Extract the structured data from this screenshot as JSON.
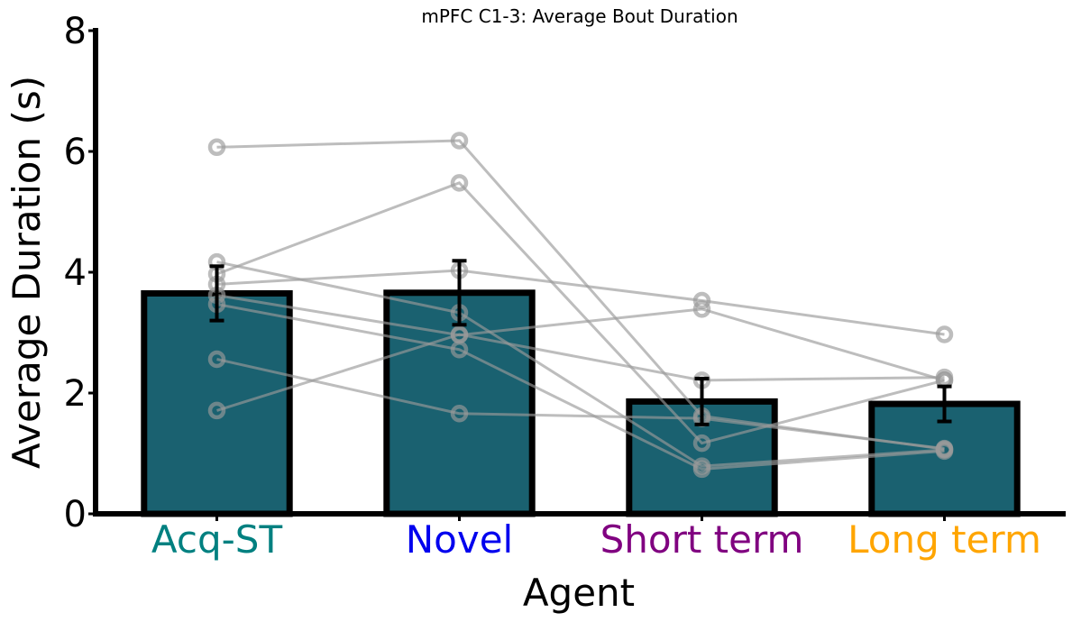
{
  "chart_data": {
    "type": "bar",
    "title": "mPFC C1-3: Average Bout Duration",
    "xlabel": "Agent",
    "ylabel": "Average Duration (s)",
    "ylim": [
      0,
      8
    ],
    "yticks": [
      "0",
      "2",
      "4",
      "6",
      "8"
    ],
    "categories": [
      "Acq-ST",
      "Novel",
      "Short term",
      "Long term"
    ],
    "category_colors": [
      "#008080",
      "#0000ee",
      "#800080",
      "#ffa500"
    ],
    "bar_color": "#1a6170",
    "bar_edge_color": "#000000",
    "point_color": "#999999",
    "values": [
      3.65,
      3.66,
      1.86,
      1.82
    ],
    "error": [
      0.45,
      0.53,
      0.38,
      0.29
    ],
    "subjects": [
      [
        6.07,
        6.18,
        1.62,
        1.07
      ],
      [
        3.97,
        5.48,
        1.17,
        2.21
      ],
      [
        3.8,
        4.03,
        3.53,
        2.97
      ],
      [
        4.17,
        3.33,
        0.79,
        1.06
      ],
      [
        3.62,
        2.96,
        3.39,
        2.21
      ],
      [
        3.47,
        2.72,
        0.74,
        1.04
      ],
      [
        2.56,
        1.66,
        1.58,
        1.08
      ],
      [
        1.71,
        2.97,
        2.21,
        2.26
      ]
    ],
    "grid": false,
    "legend": "none"
  }
}
